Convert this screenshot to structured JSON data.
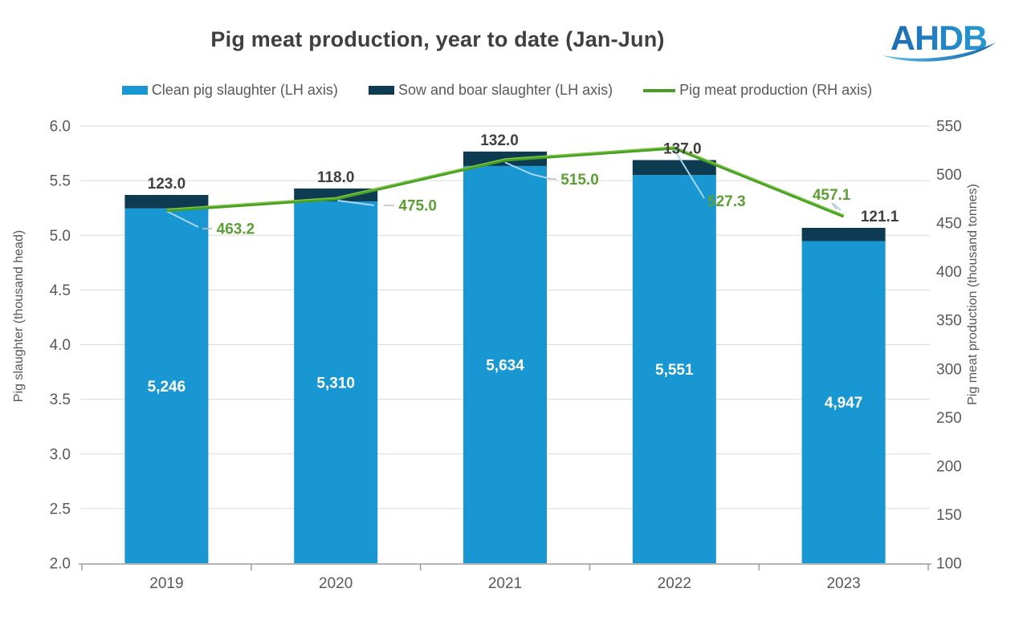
{
  "title": "Pig meat production, year to date (Jan-Jun)",
  "logo": {
    "text": "AHDB"
  },
  "chart_data": {
    "type": "combo-bar-line",
    "title": "Pig meat production, year to date (Jan-Jun)",
    "categories": [
      "2019",
      "2020",
      "2021",
      "2022",
      "2023"
    ],
    "series": [
      {
        "name": "Clean pig slaughter (LH axis)",
        "type": "bar",
        "stack": "slaughter",
        "axis": "left",
        "color": "#1897D3",
        "values": [
          5246,
          5310,
          5634,
          5551,
          4947
        ]
      },
      {
        "name": "Sow and boar slaughter (LH axis)",
        "type": "bar",
        "stack": "slaughter",
        "axis": "left",
        "color": "#0D3B52",
        "values": [
          123.0,
          118.0,
          132.0,
          137.0,
          121.1
        ]
      },
      {
        "name": "Pig meat production (RH axis)",
        "type": "line",
        "axis": "right",
        "color": "#47A023",
        "label_color": "#5B9F35",
        "values": [
          463.2,
          475.0,
          515.0,
          527.3,
          457.1
        ]
      }
    ],
    "left_axis": {
      "title": "Pig slaughter (thousand head)",
      "min": 2.0,
      "max": 6.0,
      "step": 0.5,
      "ticks": [
        "6.0",
        "5.5",
        "5.0",
        "4.5",
        "4.0",
        "3.5",
        "3.0",
        "2.5",
        "2.0"
      ]
    },
    "right_axis": {
      "title": "Pig meat production (thousand tonnes)",
      "min": 100,
      "max": 550,
      "step": 50,
      "ticks": [
        "550",
        "500",
        "450",
        "400",
        "350",
        "300",
        "250",
        "200",
        "150",
        "100"
      ]
    },
    "grid": true,
    "legend_position": "top",
    "bar_value_labels": [
      "5,246",
      "5,310",
      "5,634",
      "5,551",
      "4,947"
    ],
    "sow_value_labels": [
      "123.0",
      "118.0",
      "132.0",
      "137.0",
      "121.1"
    ],
    "line_value_labels": [
      "463.2",
      "475.0",
      "515.0",
      "527.3",
      "457.1"
    ],
    "colors": {
      "text_dark": "#404040",
      "text_gray": "#595959",
      "grid": "#DBDBDB",
      "axis_line": "#9C9C9C",
      "leader": "#A9D6F2",
      "bar_label": "#FFFFFF"
    }
  }
}
